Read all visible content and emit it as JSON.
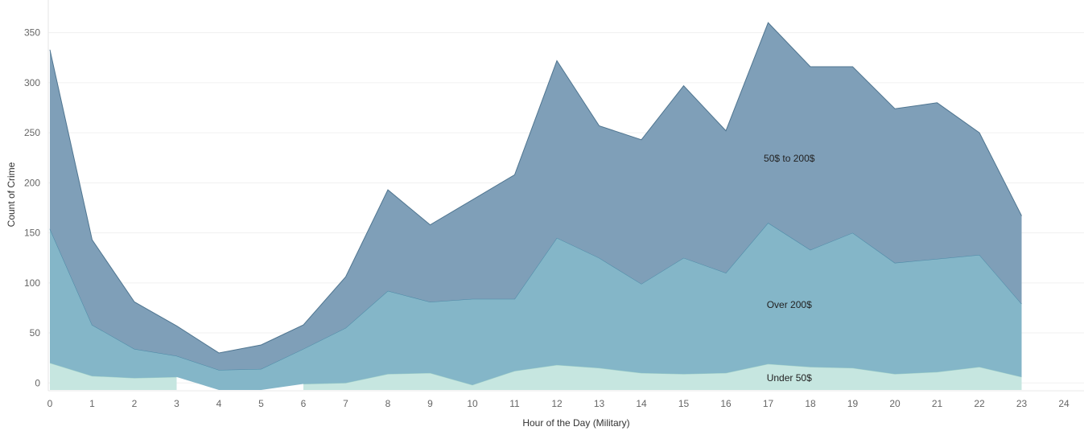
{
  "chart_data": {
    "type": "area",
    "stacked": true,
    "xlabel": "Hour of the Day (Military)",
    "ylabel": "Count of Crime",
    "x": [
      0,
      1,
      2,
      3,
      4,
      5,
      6,
      7,
      8,
      9,
      10,
      11,
      12,
      13,
      14,
      15,
      16,
      17,
      18,
      19,
      20,
      21,
      22,
      23
    ],
    "x_ticks": [
      0,
      1,
      2,
      3,
      4,
      5,
      6,
      7,
      8,
      9,
      10,
      11,
      12,
      13,
      14,
      15,
      16,
      17,
      18,
      19,
      20,
      21,
      22,
      23,
      24
    ],
    "y_ticks": [
      0,
      50,
      100,
      150,
      200,
      250,
      300,
      350
    ],
    "xlim": [
      0,
      24
    ],
    "ylim": [
      -7,
      365
    ],
    "grid": true,
    "series": [
      {
        "name": "Under 50$",
        "color": "#c6e6e0",
        "stroke": "#9fd0c8",
        "values": [
          20,
          7,
          5,
          6,
          null,
          null,
          -1,
          0,
          9,
          10,
          -2,
          12,
          18,
          15,
          10,
          9,
          10,
          19,
          16,
          15,
          9,
          11,
          16,
          6
        ]
      },
      {
        "name": "Over 200$",
        "color": "#84b6c8",
        "stroke": "#4a89a6",
        "values": [
          134,
          51,
          29,
          21,
          20,
          21,
          35,
          55,
          83,
          71,
          86,
          72,
          127,
          110,
          89,
          116,
          100,
          141,
          117,
          135,
          111,
          113,
          112,
          73
        ]
      },
      {
        "name": "50$ to 200$",
        "color": "#7f9fb8",
        "stroke": "#4f7590",
        "values": [
          179,
          85,
          47,
          30,
          17,
          24,
          24,
          51,
          101,
          77,
          99,
          124,
          177,
          132,
          144,
          172,
          142,
          200,
          183,
          166,
          154,
          156,
          122,
          88
        ]
      }
    ],
    "annotations": [
      {
        "text": "50$ to 200$",
        "series": "50$ to 200$",
        "x": 17.5,
        "y": 221
      },
      {
        "text": "Over 200$",
        "series": "Over 200$",
        "x": 17.5,
        "y": 75
      },
      {
        "text": "Under 50$",
        "series": "Under 50$",
        "x": 17.5,
        "y": 2
      }
    ]
  }
}
